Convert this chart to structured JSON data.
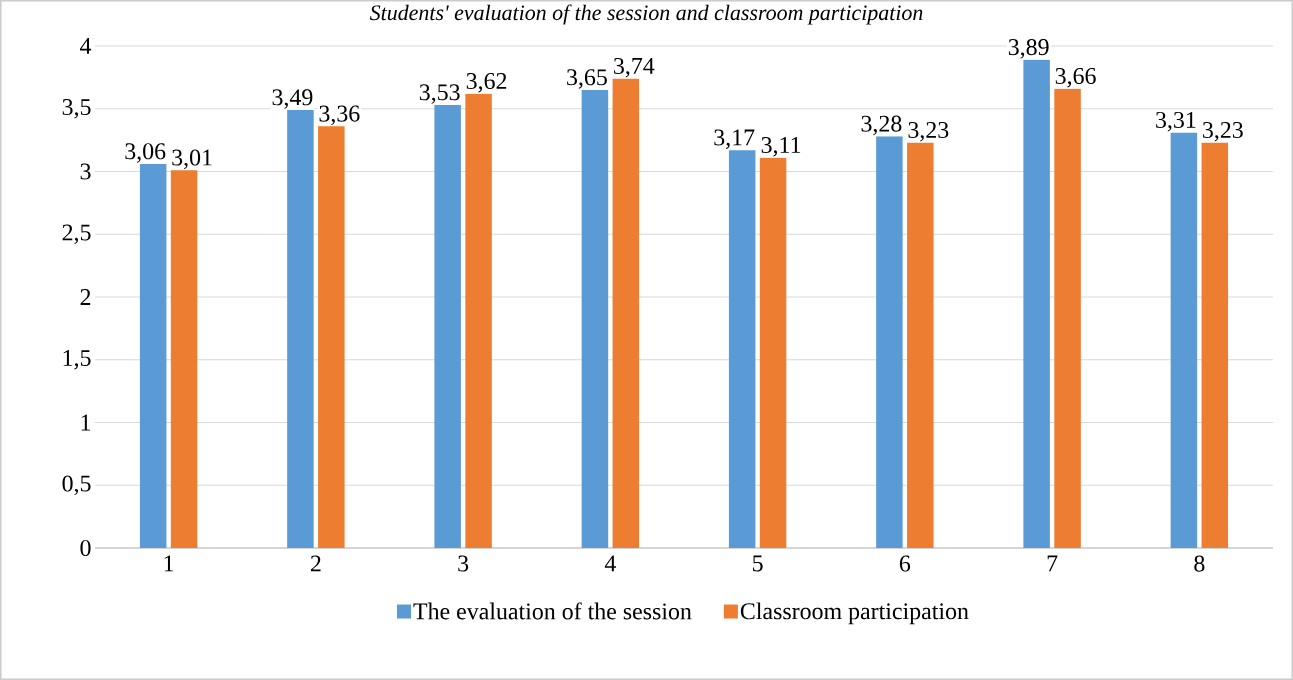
{
  "chart_data": {
    "type": "bar",
    "title": "Students' evaluation of the session and classroom participation",
    "categories": [
      "1",
      "2",
      "3",
      "4",
      "5",
      "6",
      "7",
      "8"
    ],
    "series": [
      {
        "name": "The evaluation of the session",
        "color": "#5b9bd5",
        "values": [
          3.06,
          3.49,
          3.53,
          3.65,
          3.17,
          3.28,
          3.89,
          3.31
        ],
        "value_labels": [
          "3,06",
          "3,49",
          "3,53",
          "3,65",
          "3,17",
          "3,28",
          "3,89",
          "3,31"
        ]
      },
      {
        "name": "Classroom participation",
        "color": "#ed7d31",
        "values": [
          3.01,
          3.36,
          3.62,
          3.74,
          3.11,
          3.23,
          3.66,
          3.23
        ],
        "value_labels": [
          "3,01",
          "3,36",
          "3,62",
          "3,74",
          "3,11",
          "3,23",
          "3,66",
          "3,23"
        ]
      }
    ],
    "ylim": [
      0,
      4
    ],
    "yticks": [
      0,
      {
        "value": 0.5,
        "label": "0,5"
      },
      1,
      {
        "value": 1.5,
        "label": "1,5"
      },
      2,
      {
        "value": 2.5,
        "label": "2,5"
      },
      3,
      {
        "value": 3.5,
        "label": "3,5"
      },
      4
    ],
    "grid": "y",
    "legend": "bottom"
  }
}
